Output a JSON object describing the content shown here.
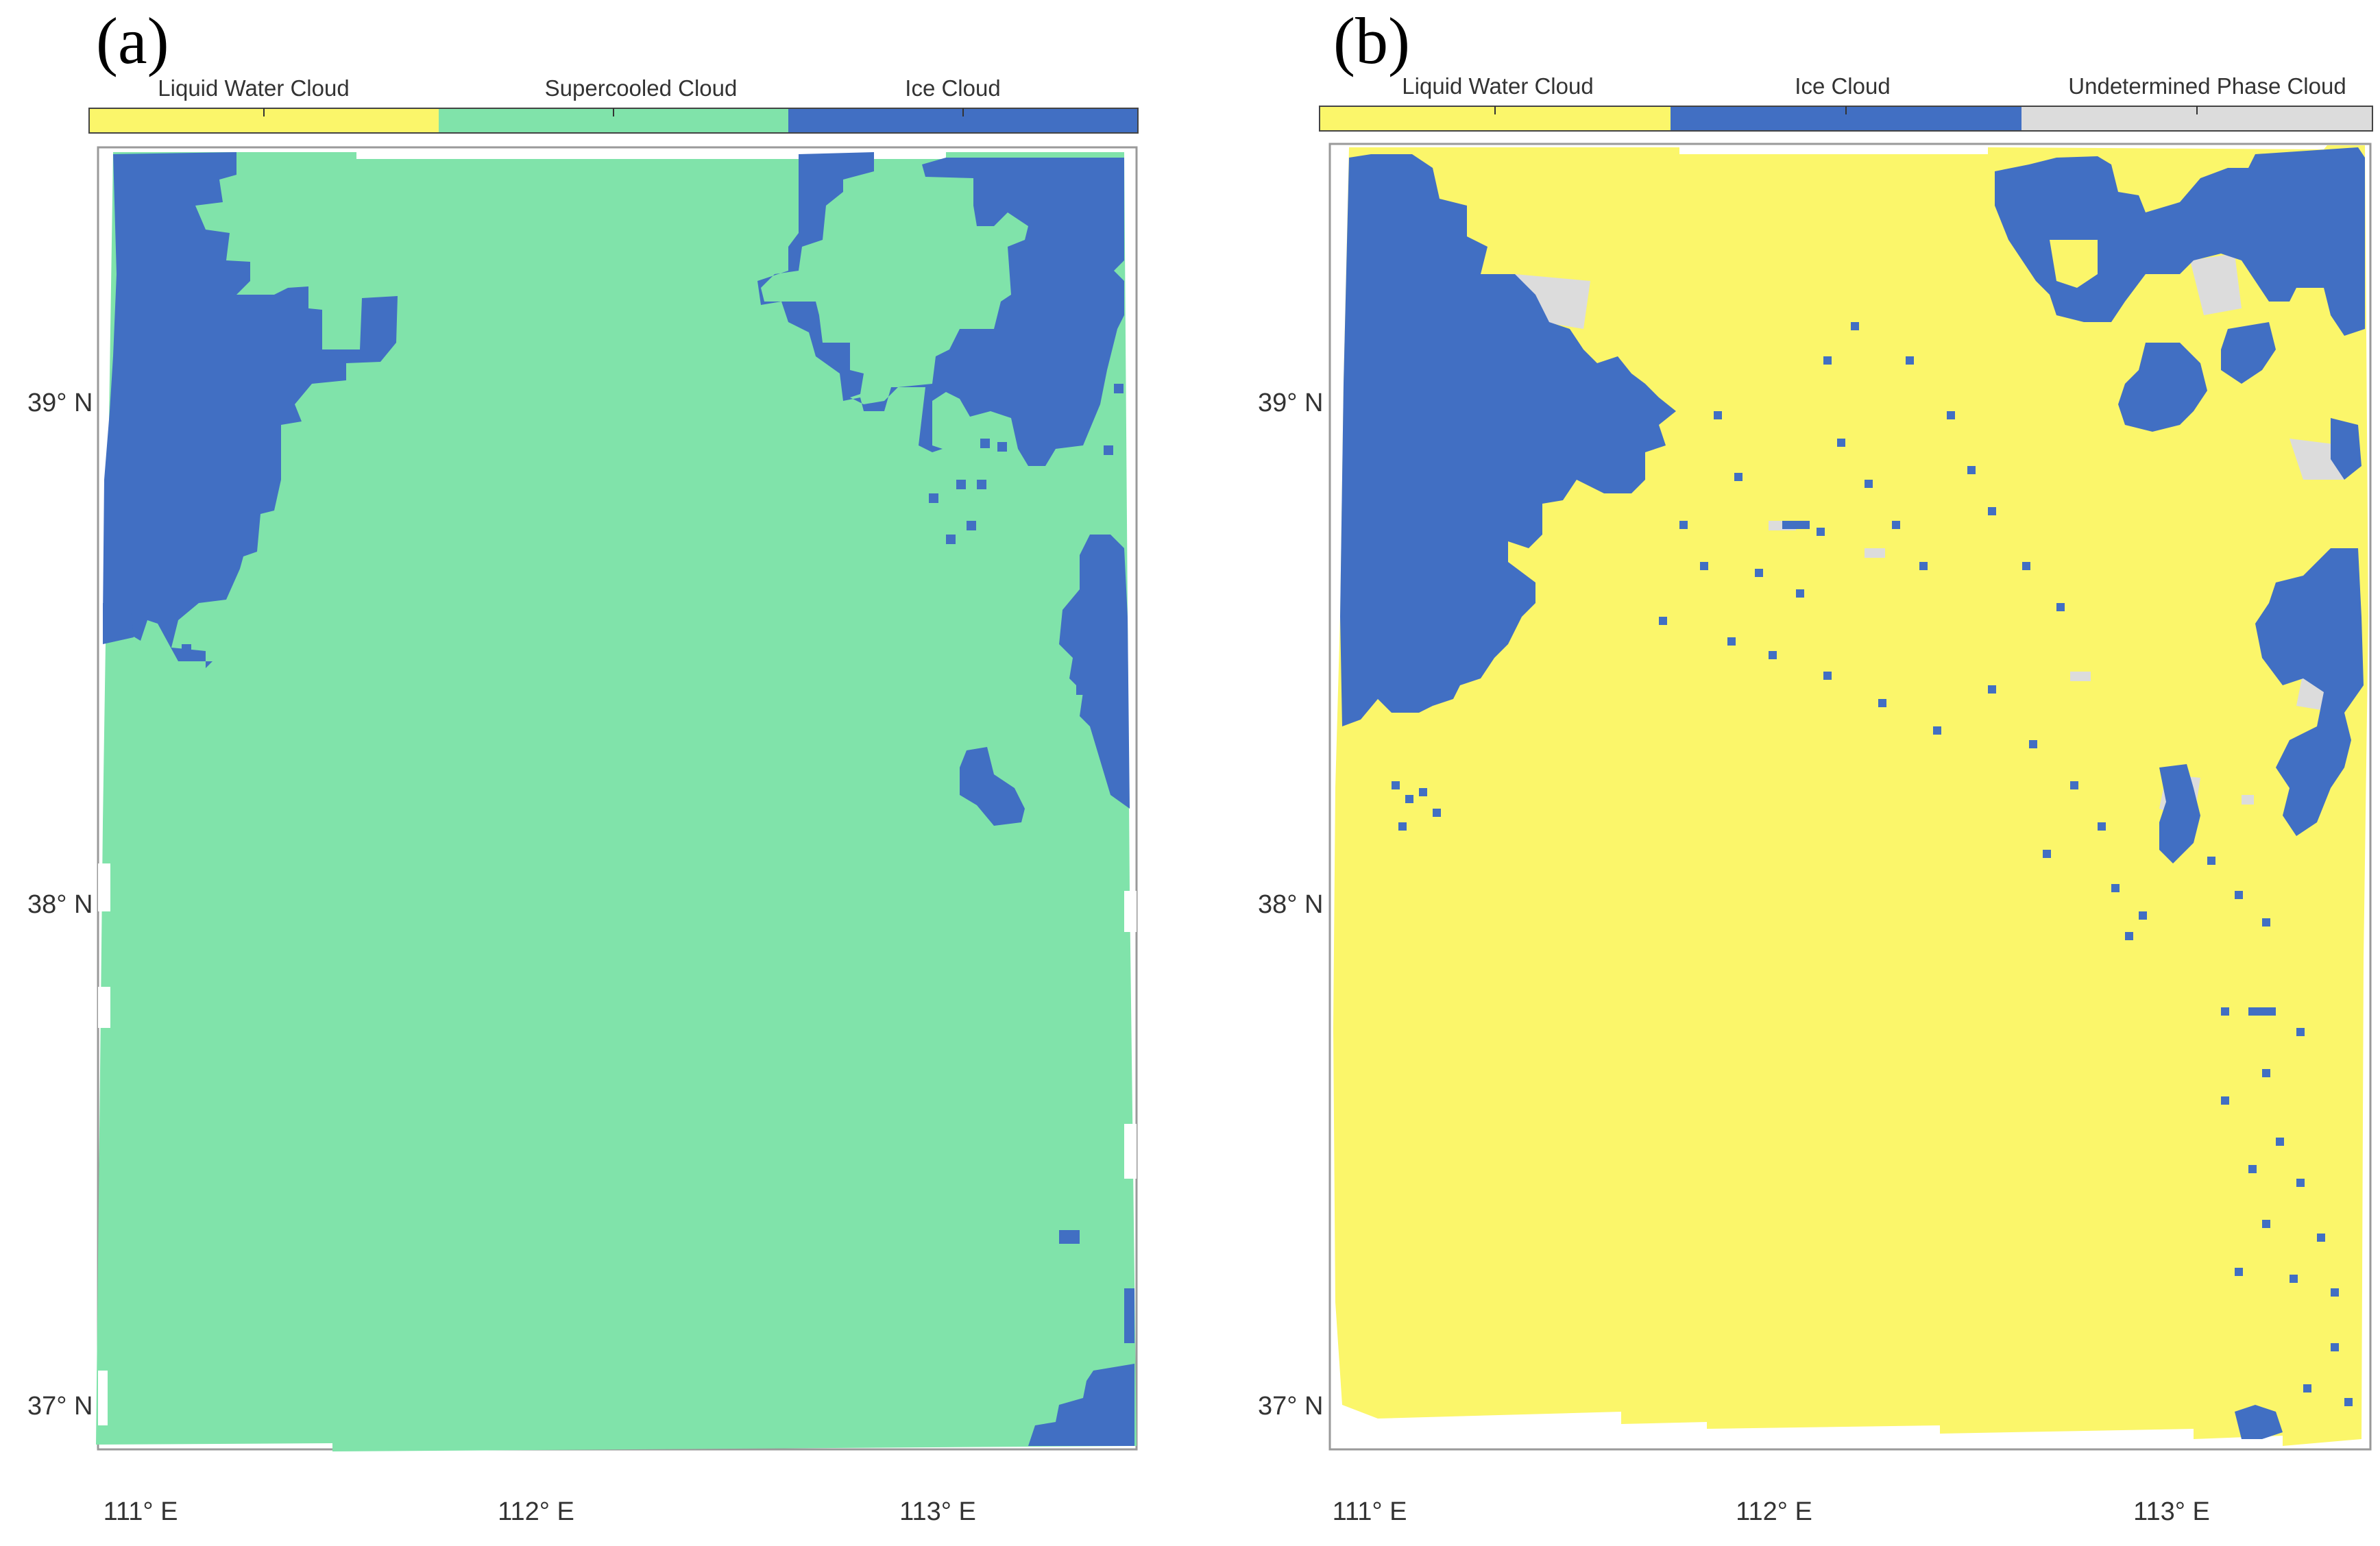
{
  "figure": {
    "panels": [
      {
        "id": "a",
        "label": "(a)",
        "colorbar": [
          {
            "name": "Liquid Water Cloud",
            "color": "#fbf66a"
          },
          {
            "name": "Supercooled Cloud",
            "color": "#80e3aa"
          },
          {
            "name": "Ice Cloud",
            "color": "#416fc3"
          }
        ],
        "background_class": "Supercooled Cloud",
        "background_color": "#80e3aa",
        "overlay_class": "Ice Cloud",
        "overlay_color": "#416fc3",
        "lat_ticks": [
          "39° N",
          "38° N",
          "37° N"
        ],
        "lon_ticks": [
          "111° E",
          "112° E",
          "113° E"
        ]
      },
      {
        "id": "b",
        "label": "(b)",
        "colorbar": [
          {
            "name": "Liquid Water Cloud",
            "color": "#fbf66a"
          },
          {
            "name": "Ice Cloud",
            "color": "#416fc3"
          },
          {
            "name": "Undetermined Phase Cloud",
            "color": "#dcdcdc"
          }
        ],
        "background_class": "Liquid Water Cloud",
        "background_color": "#fbf66a",
        "overlay_class": "Ice Cloud",
        "overlay_color": "#416fc3",
        "undetermined_color": "#dcdcdc",
        "lat_ticks": [
          "39° N",
          "38° N",
          "37° N"
        ],
        "lon_ticks": [
          "111° E",
          "112° E",
          "113° E"
        ]
      }
    ]
  }
}
